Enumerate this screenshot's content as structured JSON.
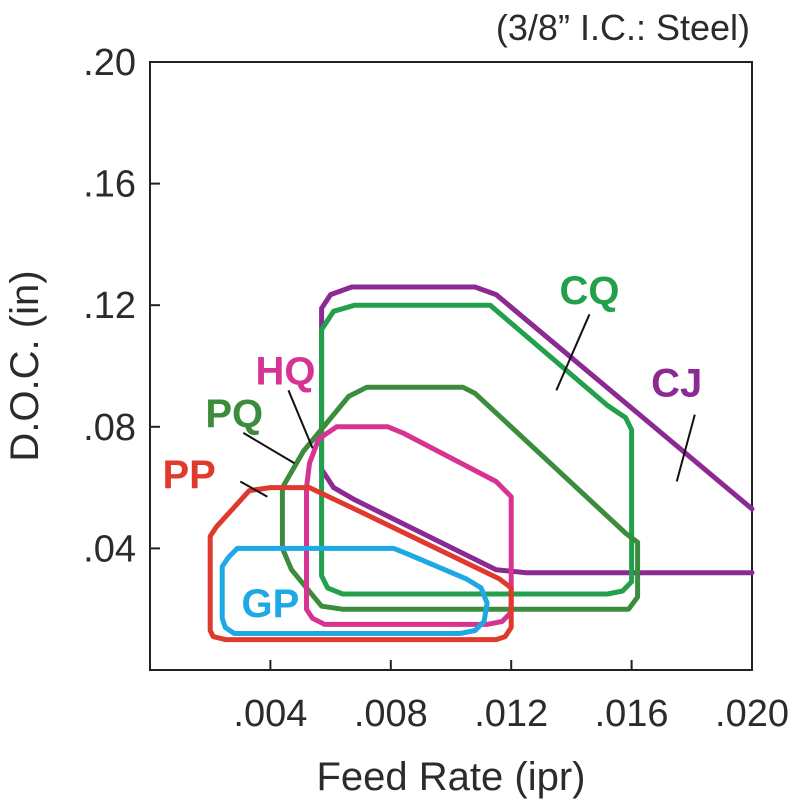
{
  "chart_data": {
    "type": "region",
    "title": "(3/8” I.C.: Steel)",
    "xlabel": "Feed Rate (ipr)",
    "ylabel": "D.O.C. (in)",
    "xlim": [
      0.0,
      0.02
    ],
    "ylim": [
      0.0,
      0.2
    ],
    "xticks": [
      {
        "value": 0.004,
        "label": ".004"
      },
      {
        "value": 0.008,
        "label": ".008"
      },
      {
        "value": 0.012,
        "label": ".012"
      },
      {
        "value": 0.016,
        "label": ".016"
      },
      {
        "value": 0.02,
        "label": ".020"
      }
    ],
    "yticks": [
      {
        "value": 0.04,
        "label": ".04"
      },
      {
        "value": 0.08,
        "label": ".08"
      },
      {
        "value": 0.12,
        "label": ".12"
      },
      {
        "value": 0.16,
        "label": ".16"
      },
      {
        "value": 0.2,
        "label": ".20"
      }
    ],
    "series": [
      {
        "name": "CJ",
        "color": "#8b2a92",
        "closed": false,
        "points": [
          [
            0.02,
            0.053
          ],
          [
            0.0115,
            0.1235
          ],
          [
            0.0108,
            0.126
          ],
          [
            0.0067,
            0.126
          ],
          [
            0.006,
            0.1235
          ],
          [
            0.0057,
            0.119
          ],
          [
            0.0057,
            0.066
          ],
          [
            0.0061,
            0.06
          ],
          [
            0.0068,
            0.056
          ],
          [
            0.0115,
            0.033
          ],
          [
            0.0125,
            0.032
          ],
          [
            0.02,
            0.032
          ]
        ]
      },
      {
        "name": "CQ",
        "color": "#22a04b",
        "closed": true,
        "points": [
          [
            0.0068,
            0.12
          ],
          [
            0.0113,
            0.12
          ],
          [
            0.0152,
            0.087
          ],
          [
            0.0158,
            0.083
          ],
          [
            0.016,
            0.079
          ],
          [
            0.016,
            0.029
          ],
          [
            0.0157,
            0.026
          ],
          [
            0.0152,
            0.025
          ],
          [
            0.0064,
            0.025
          ],
          [
            0.0059,
            0.027
          ],
          [
            0.0057,
            0.031
          ],
          [
            0.0057,
            0.112
          ],
          [
            0.0061,
            0.118
          ]
        ]
      },
      {
        "name": "PQ",
        "color": "#3c8c3e",
        "closed": true,
        "points": [
          [
            0.0044,
            0.06
          ],
          [
            0.0051,
            0.072
          ],
          [
            0.0066,
            0.09
          ],
          [
            0.0072,
            0.093
          ],
          [
            0.0104,
            0.093
          ],
          [
            0.0108,
            0.091
          ],
          [
            0.0158,
            0.045
          ],
          [
            0.0162,
            0.042
          ],
          [
            0.0162,
            0.024
          ],
          [
            0.0159,
            0.02
          ],
          [
            0.0064,
            0.02
          ],
          [
            0.0057,
            0.021
          ],
          [
            0.0047,
            0.033
          ],
          [
            0.0044,
            0.04
          ]
        ]
      },
      {
        "name": "HQ",
        "color": "#d63393",
        "closed": true,
        "points": [
          [
            0.0053,
            0.068
          ],
          [
            0.0056,
            0.076
          ],
          [
            0.0062,
            0.08
          ],
          [
            0.0079,
            0.08
          ],
          [
            0.0084,
            0.078
          ],
          [
            0.0115,
            0.062
          ],
          [
            0.012,
            0.057
          ],
          [
            0.012,
            0.019
          ],
          [
            0.0117,
            0.016
          ],
          [
            0.0112,
            0.015
          ],
          [
            0.0058,
            0.015
          ],
          [
            0.0054,
            0.017
          ],
          [
            0.0052,
            0.02
          ],
          [
            0.0052,
            0.06
          ]
        ]
      },
      {
        "name": "PP",
        "color": "#e03a2e",
        "closed": true,
        "points": [
          [
            0.002,
            0.044
          ],
          [
            0.0022,
            0.047
          ],
          [
            0.0033,
            0.059
          ],
          [
            0.004,
            0.06
          ],
          [
            0.0053,
            0.06
          ],
          [
            0.007,
            0.052
          ],
          [
            0.0116,
            0.03
          ],
          [
            0.012,
            0.027
          ],
          [
            0.012,
            0.014
          ],
          [
            0.0118,
            0.011
          ],
          [
            0.0115,
            0.01
          ],
          [
            0.0025,
            0.01
          ],
          [
            0.0021,
            0.011
          ],
          [
            0.002,
            0.013
          ]
        ]
      },
      {
        "name": "GP",
        "color": "#1ea8e4",
        "closed": true,
        "points": [
          [
            0.0026,
            0.037
          ],
          [
            0.0029,
            0.04
          ],
          [
            0.0081,
            0.04
          ],
          [
            0.0086,
            0.038
          ],
          [
            0.0105,
            0.03
          ],
          [
            0.011,
            0.027
          ],
          [
            0.0112,
            0.022
          ],
          [
            0.0111,
            0.016
          ],
          [
            0.0108,
            0.013
          ],
          [
            0.0103,
            0.012
          ],
          [
            0.0028,
            0.012
          ],
          [
            0.0025,
            0.014
          ],
          [
            0.0024,
            0.017
          ],
          [
            0.0024,
            0.034
          ]
        ]
      }
    ],
    "annotations": [
      {
        "text": "CJ",
        "series": "CJ",
        "at": [
          0.0175,
          0.0945
        ],
        "leader": [
          [
            0.0175,
            0.062
          ],
          [
            0.0181,
            0.084
          ]
        ]
      },
      {
        "text": "CQ",
        "series": "CQ",
        "at": [
          0.0146,
          0.125
        ],
        "leader": [
          [
            0.0135,
            0.092
          ],
          [
            0.0146,
            0.117
          ]
        ]
      },
      {
        "text": "HQ",
        "series": "HQ",
        "at": [
          0.0045,
          0.0985
        ],
        "leader": [
          [
            0.0046,
            0.092
          ],
          [
            0.0054,
            0.073
          ]
        ]
      },
      {
        "text": "PQ",
        "series": "PQ",
        "at": [
          0.0028,
          0.0845
        ],
        "leader": [
          [
            0.0031,
            0.078
          ],
          [
            0.0048,
            0.068
          ]
        ]
      },
      {
        "text": "PP",
        "series": "PP",
        "at": [
          0.0013,
          0.0645
        ],
        "leader": [
          [
            0.003,
            0.062
          ],
          [
            0.0039,
            0.057
          ]
        ]
      },
      {
        "text": "GP",
        "series": "GP",
        "at": [
          0.004,
          0.022
        ],
        "leader": null
      }
    ]
  }
}
